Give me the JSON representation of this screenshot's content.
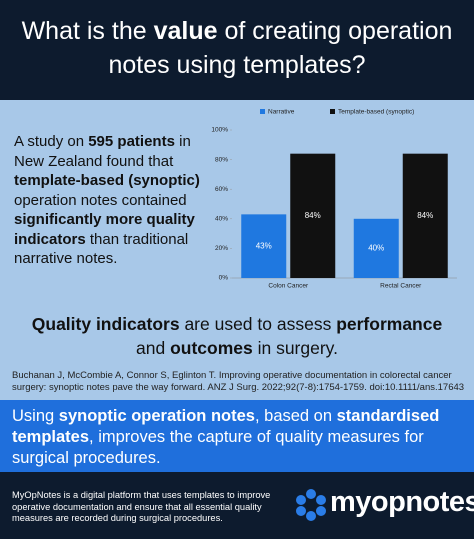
{
  "header": {
    "title": [
      {
        "text": "What is the ",
        "bold": false
      },
      {
        "text": "value",
        "bold": true
      },
      {
        "text": " of creating operation notes using templates?",
        "bold": false
      }
    ]
  },
  "intro": [
    {
      "text": "A study on ",
      "bold": false
    },
    {
      "text": "595 patients",
      "bold": true
    },
    {
      "text": " in New Zealand found that ",
      "bold": false
    },
    {
      "text": "template-based (synoptic)",
      "bold": true
    },
    {
      "text": " operation notes contained ",
      "bold": false
    },
    {
      "text": "significantly more quality indicators",
      "bold": true
    },
    {
      "text": " than traditional narrative notes.",
      "bold": false
    }
  ],
  "chart_data": {
    "type": "bar",
    "categories": [
      "Colon Cancer",
      "Rectal Cancer"
    ],
    "series": [
      {
        "name": "Narrative",
        "color": "#1f78e0",
        "values": [
          43,
          40
        ],
        "value_labels": [
          "43%",
          "40%"
        ]
      },
      {
        "name": "Template-based (synoptic)",
        "color": "#111111",
        "values": [
          84,
          84
        ],
        "value_labels": [
          "84%",
          "84%"
        ]
      }
    ],
    "ylim": [
      0,
      100
    ],
    "yticks": [
      {
        "value": 0,
        "label": "0%"
      },
      {
        "value": 20,
        "label": "20%"
      },
      {
        "value": 40,
        "label": "40%"
      },
      {
        "value": 60,
        "label": "60%"
      },
      {
        "value": 80,
        "label": "80%"
      },
      {
        "value": 100,
        "label": "100%"
      }
    ],
    "grid": false,
    "legend": "top"
  },
  "statement": [
    {
      "text": "Quality indicators",
      "bold": true
    },
    {
      "text": " are used to assess ",
      "bold": false
    },
    {
      "text": "performance",
      "bold": true
    },
    {
      "text": " and ",
      "bold": false
    },
    {
      "text": "outcomes",
      "bold": true
    },
    {
      "text": " in surgery.",
      "bold": false
    }
  ],
  "citation": "Buchanan J, McCombie A, Connor S, Eglinton T. Improving operative documentation in colorectal cancer surgery: synoptic notes pave the way forward. ANZ J Surg. 2022;92(7-8):1754-1759. doi:10.1111/ans.17643",
  "callout": [
    {
      "text": "Using ",
      "bold": false
    },
    {
      "text": "synoptic operation notes",
      "bold": true
    },
    {
      "text": ", based on ",
      "bold": false
    },
    {
      "text": "standardised templates",
      "bold": true
    },
    {
      "text": ", improves the capture of quality measures for surgical procedures.",
      "bold": false
    }
  ],
  "footer": {
    "text": "MyOpNotes is a digital platform that uses templates to improve operative documentation and ensure that all essential quality measures are recorded during surgical procedures.",
    "logo": "myopnotes"
  }
}
